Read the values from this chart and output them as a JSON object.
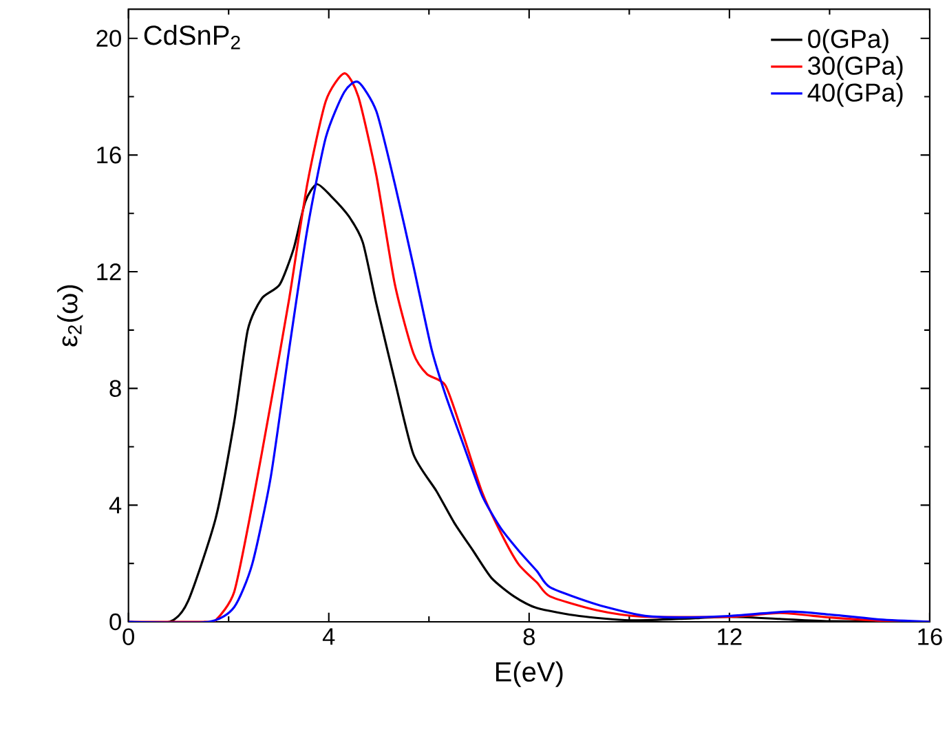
{
  "chart_data": {
    "type": "line",
    "xlabel": "E(eV)",
    "ylabel": "ε$_{2}$(ω)",
    "annotations": [
      "CdSnP$_{2}$"
    ],
    "xlim": [
      0,
      16
    ],
    "ylim": [
      0,
      21
    ],
    "xticks": [
      0,
      4,
      8,
      12,
      16
    ],
    "yticks": [
      0,
      4,
      8,
      12,
      16,
      20
    ],
    "legend": "top right",
    "grid": false,
    "marker": "none",
    "line_style": "solid",
    "series": [
      {
        "name": "0(GPa)",
        "color": "#000000",
        "x": [
          0,
          0.82,
          1.19,
          1.74,
          2.11,
          2.38,
          2.66,
          3.02,
          3.3,
          3.53,
          3.76,
          4.04,
          4.4,
          4.68,
          4.95,
          5.32,
          5.69,
          6.15,
          6.51,
          6.88,
          7.25,
          7.7,
          8.16,
          9,
          10,
          11,
          12,
          13,
          14,
          16
        ],
        "values": [
          0,
          0,
          0.71,
          3.54,
          6.84,
          9.99,
          11.08,
          11.56,
          12.8,
          14.4,
          15.0,
          14.6,
          13.9,
          13.0,
          10.9,
          8.25,
          5.74,
          4.48,
          3.38,
          2.44,
          1.5,
          0.87,
          0.47,
          0.2,
          0.05,
          0.1,
          0.17,
          0.1,
          0.02,
          0
        ]
      },
      {
        "name": "30(GPa)",
        "color": "#ff0000",
        "x": [
          0,
          1.5,
          1.74,
          2.11,
          2.47,
          2.84,
          3.21,
          3.57,
          3.94,
          4.31,
          4.59,
          4.95,
          5.32,
          5.69,
          5.96,
          6.33,
          6.69,
          7.06,
          7.43,
          7.79,
          8.16,
          8.42,
          9.34,
          10.25,
          12,
          13,
          14,
          15,
          16
        ],
        "values": [
          0,
          0,
          0.05,
          1.02,
          4.0,
          7.47,
          11.08,
          15.0,
          17.85,
          18.8,
          18.0,
          15.3,
          11.56,
          9.2,
          8.49,
          8.1,
          6.37,
          4.45,
          3.07,
          1.97,
          1.34,
          0.87,
          0.4,
          0.18,
          0.17,
          0.3,
          0.15,
          0.04,
          0
        ]
      },
      {
        "name": "40(GPa)",
        "color": "#0000ff",
        "x": [
          0,
          1.6,
          2.11,
          2.47,
          2.84,
          3.21,
          3.57,
          3.94,
          4.31,
          4.59,
          4.95,
          5.32,
          5.69,
          6.05,
          6.33,
          6.69,
          7.06,
          7.43,
          7.79,
          8.16,
          8.42,
          9.34,
          10.25,
          11,
          12,
          13.2,
          14,
          15,
          16
        ],
        "values": [
          0,
          0,
          0.5,
          1.97,
          4.95,
          9.36,
          13.44,
          16.6,
          18.16,
          18.5,
          17.5,
          15.0,
          12.2,
          9.36,
          7.78,
          6.06,
          4.33,
          3.22,
          2.44,
          1.73,
          1.18,
          0.6,
          0.22,
          0.15,
          0.2,
          0.35,
          0.25,
          0.08,
          0
        ]
      }
    ]
  }
}
